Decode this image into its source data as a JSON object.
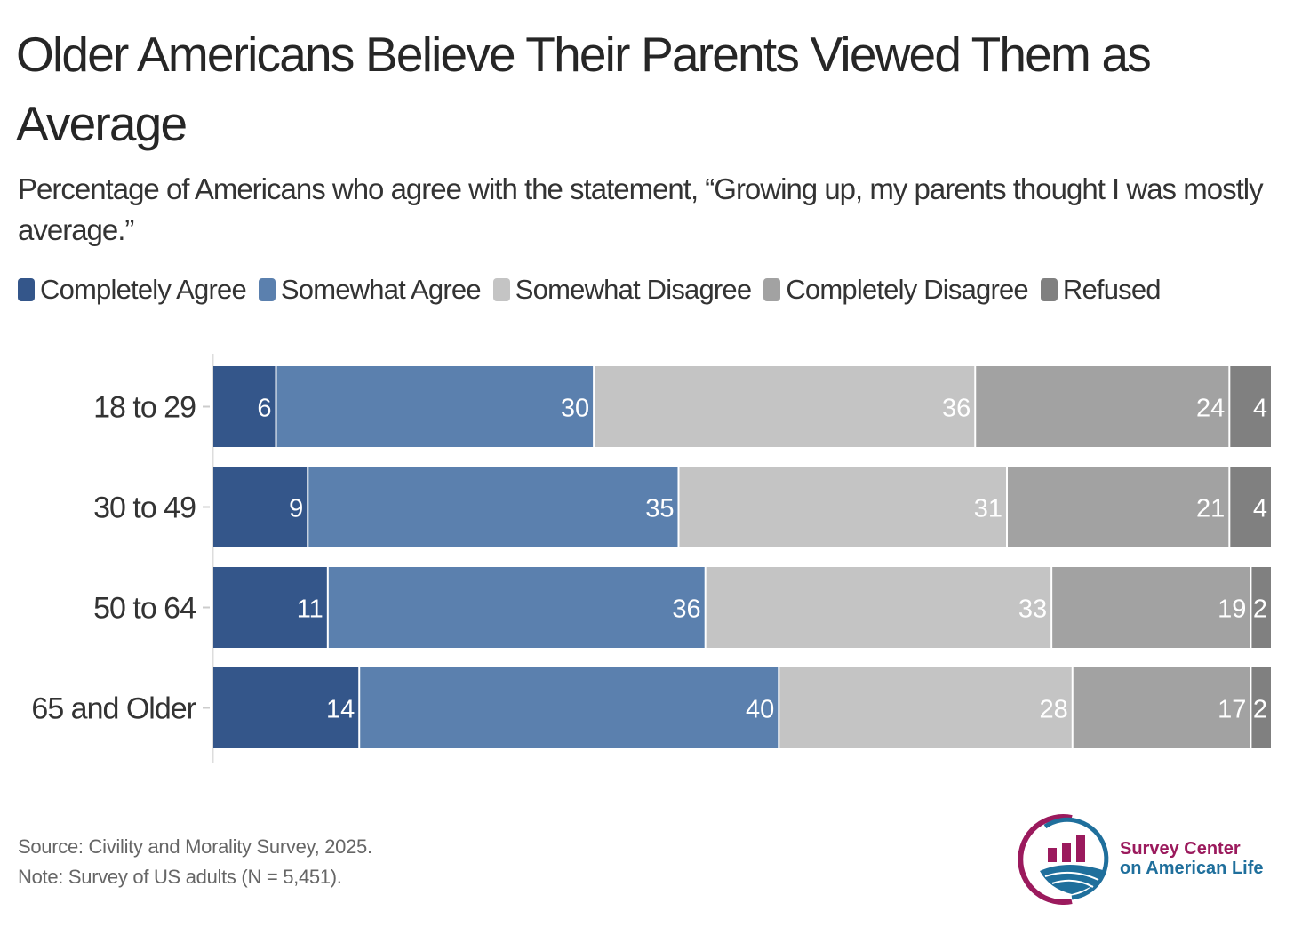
{
  "chart_data": {
    "type": "bar",
    "orientation": "horizontal",
    "stacked": true,
    "title": "Older Americans Believe Their Parents Viewed Them as Average",
    "subtitle": "Percentage of Americans who agree with the statement, “Growing up, my parents thought I was mostly average.”",
    "categories": [
      "18 to 29",
      "30 to 49",
      "50 to 64",
      "65 and Older"
    ],
    "series": [
      {
        "name": "Completely Agree",
        "color": "#34568a",
        "values": [
          6,
          9,
          11,
          14
        ]
      },
      {
        "name": "Somewhat Agree",
        "color": "#5b80ae",
        "values": [
          30,
          35,
          36,
          40
        ]
      },
      {
        "name": "Somewhat Disagree",
        "color": "#c4c4c4",
        "values": [
          36,
          31,
          33,
          28
        ]
      },
      {
        "name": "Completely Disagree",
        "color": "#a2a2a2",
        "values": [
          24,
          21,
          19,
          17
        ]
      },
      {
        "name": "Refused",
        "color": "#808080",
        "values": [
          4,
          4,
          2,
          2
        ]
      }
    ],
    "xlabel": "",
    "ylabel": "",
    "xlim": [
      0,
      100
    ],
    "legend_position": "top-left",
    "grid": false
  },
  "footer": {
    "source": "Source: Civility and Morality Survey, 2025.",
    "note": "Note: Survey of US adults (N = 5,451)."
  },
  "logo": {
    "line1": "Survey Center",
    "line2": "on American Life",
    "color1": "#9b1a5d",
    "color2": "#1f6f9c"
  }
}
